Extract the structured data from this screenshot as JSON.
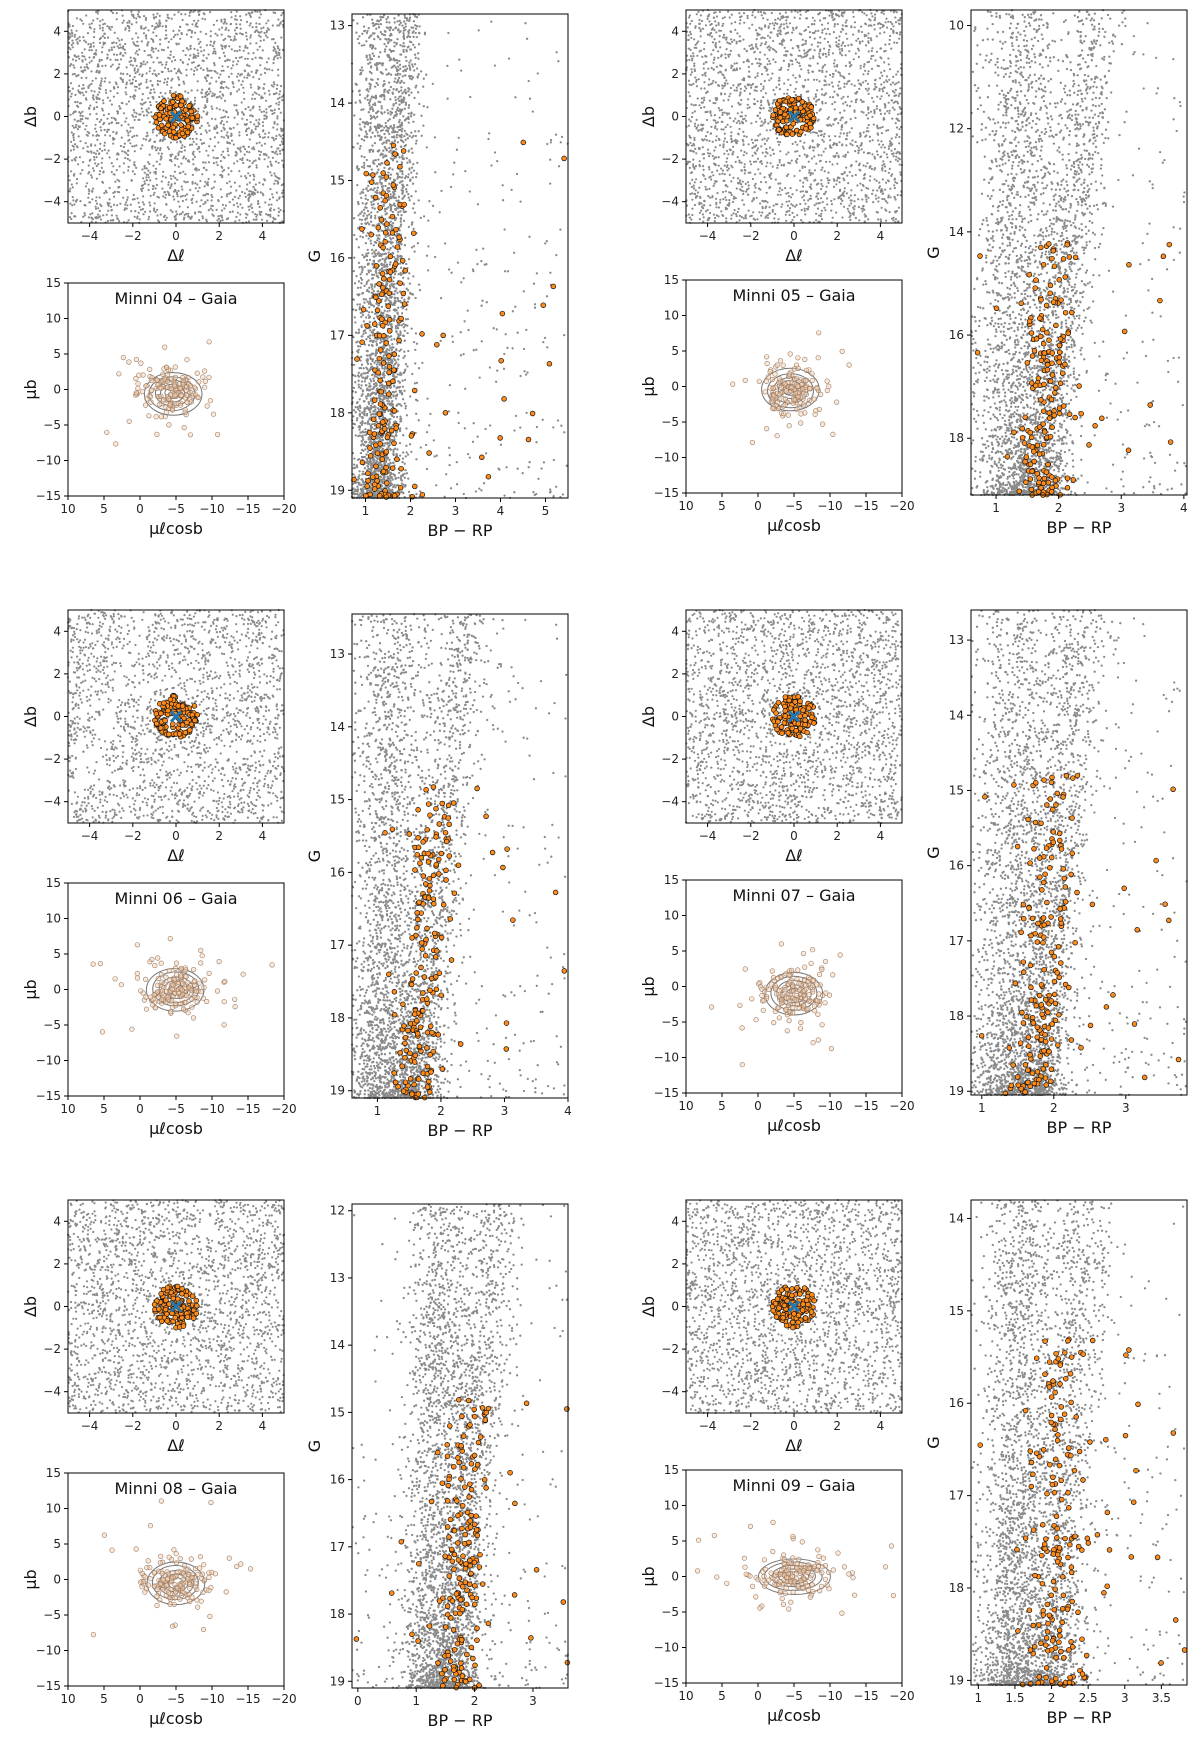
{
  "panels": [
    {
      "title": "Minni 04 – Gaia",
      "sky": {
        "xlabel": "Δℓ",
        "ylabel": "Δb",
        "xlim": [
          -5,
          5
        ],
        "ylim": [
          -5,
          5
        ],
        "xticks": [
          -4,
          -2,
          0,
          2,
          4
        ],
        "yticks": [
          -4,
          -2,
          0,
          2,
          4
        ],
        "cluster_radius": 1.0,
        "field_pattern": "uniform"
      },
      "pm": {
        "xlabel": "μℓcosb",
        "ylabel": "μb",
        "xlim": [
          10,
          -20
        ],
        "ylim": [
          -15,
          15
        ],
        "xticks": [
          10,
          5,
          0,
          -5,
          -10,
          -15,
          -20
        ],
        "yticks": [
          -15,
          -10,
          -5,
          0,
          5,
          10,
          15
        ],
        "center": [
          -4.5,
          -0.5
        ],
        "spread": [
          4,
          3
        ]
      },
      "cmd": {
        "xlabel": "BP − RP",
        "ylabel": "G",
        "xlim": [
          0.7,
          5.5
        ],
        "ylim": [
          19.1,
          12.85
        ],
        "xticks": [
          1,
          2,
          3,
          4,
          5
        ],
        "yticks": [
          13,
          14,
          15,
          16,
          17,
          18,
          19
        ],
        "rgb_color": 1.3,
        "rgb_slope": 0.1,
        "turnoff": 14.5,
        "field_color": 1.2,
        "field_width": 0.35
      }
    },
    {
      "title": "Minni 05 – Gaia",
      "sky": {
        "xlabel": "Δℓ",
        "ylabel": "Δb",
        "xlim": [
          -5,
          5
        ],
        "ylim": [
          -5,
          5
        ],
        "xticks": [
          -4,
          -2,
          0,
          2,
          4
        ],
        "yticks": [
          -4,
          -2,
          0,
          2,
          4
        ],
        "cluster_radius": 1.0,
        "field_pattern": "uniform"
      },
      "pm": {
        "xlabel": "μℓcosb",
        "ylabel": "μb",
        "xlim": [
          10,
          -20
        ],
        "ylim": [
          -15,
          15
        ],
        "xticks": [
          10,
          5,
          0,
          -5,
          -10,
          -15,
          -20
        ],
        "yticks": [
          -15,
          -10,
          -5,
          0,
          5,
          10,
          15
        ],
        "center": [
          -4.5,
          -0.5
        ],
        "spread": [
          4,
          3
        ]
      },
      "cmd": {
        "xlabel": "BP − RP",
        "ylabel": "G",
        "xlim": [
          0.6,
          4.05
        ],
        "ylim": [
          19.1,
          9.7
        ],
        "xticks": [
          1,
          2,
          3,
          4
        ],
        "yticks": [
          10,
          12,
          14,
          16,
          18
        ],
        "rgb_color": 1.7,
        "rgb_slope": 0.1,
        "turnoff": 14.2,
        "field_color": 1.3,
        "field_width": 0.35
      }
    },
    {
      "title": "Minni 06 – Gaia",
      "sky": {
        "xlabel": "Δℓ",
        "ylabel": "Δb",
        "xlim": [
          -5,
          5
        ],
        "ylim": [
          -5,
          5
        ],
        "xticks": [
          -4,
          -2,
          0,
          2,
          4
        ],
        "yticks": [
          -4,
          -2,
          0,
          2,
          4
        ],
        "cluster_radius": 1.0,
        "field_pattern": "striped"
      },
      "pm": {
        "xlabel": "μℓcosb",
        "ylabel": "μb",
        "xlim": [
          10,
          -20
        ],
        "ylim": [
          -15,
          15
        ],
        "xticks": [
          10,
          5,
          0,
          -5,
          -10,
          -15,
          -20
        ],
        "yticks": [
          -15,
          -10,
          -5,
          0,
          5,
          10,
          15
        ],
        "center": [
          -5,
          0
        ],
        "spread": [
          4,
          3
        ]
      },
      "cmd": {
        "xlabel": "BP − RP",
        "ylabel": "G",
        "xlim": [
          0.6,
          4.0
        ],
        "ylim": [
          19.1,
          12.45
        ],
        "xticks": [
          1,
          2,
          3,
          4
        ],
        "yticks": [
          13,
          14,
          15,
          16,
          17,
          18,
          19
        ],
        "rgb_color": 1.6,
        "rgb_slope": 0.12,
        "turnoff": 14.8,
        "field_color": 1.1,
        "field_width": 0.3
      }
    },
    {
      "title": "Minni 07 – Gaia",
      "sky": {
        "xlabel": "Δℓ",
        "ylabel": "Δb",
        "xlim": [
          -5,
          5
        ],
        "ylim": [
          -5,
          5
        ],
        "xticks": [
          -4,
          -2,
          0,
          2,
          4
        ],
        "yticks": [
          -4,
          -2,
          0,
          2,
          4
        ],
        "cluster_radius": 1.0,
        "field_pattern": "uniform"
      },
      "pm": {
        "xlabel": "μℓcosb",
        "ylabel": "μb",
        "xlim": [
          10,
          -20
        ],
        "ylim": [
          -15,
          15
        ],
        "xticks": [
          10,
          5,
          0,
          -5,
          -10,
          -15,
          -20
        ],
        "yticks": [
          -15,
          -10,
          -5,
          0,
          5,
          10,
          15
        ],
        "center": [
          -5,
          -1
        ],
        "spread": [
          4,
          3
        ]
      },
      "cmd": {
        "xlabel": "BP − RP",
        "ylabel": "G",
        "xlim": [
          0.85,
          3.85
        ],
        "ylim": [
          19.05,
          12.6
        ],
        "xticks": [
          1,
          2,
          3
        ],
        "yticks": [
          13,
          14,
          15,
          16,
          17,
          18,
          19
        ],
        "rgb_color": 1.75,
        "rgb_slope": 0.1,
        "turnoff": 14.8,
        "field_color": 1.4,
        "field_width": 0.3
      }
    },
    {
      "title": "Minni 08 – Gaia",
      "sky": {
        "xlabel": "Δℓ",
        "ylabel": "Δb",
        "xlim": [
          -5,
          5
        ],
        "ylim": [
          -5,
          5
        ],
        "xticks": [
          -4,
          -2,
          0,
          2,
          4
        ],
        "yticks": [
          -4,
          -2,
          0,
          2,
          4
        ],
        "cluster_radius": 1.0,
        "field_pattern": "uniform"
      },
      "pm": {
        "xlabel": "μℓcosb",
        "ylabel": "μb",
        "xlim": [
          10,
          -20
        ],
        "ylim": [
          -15,
          15
        ],
        "xticks": [
          10,
          5,
          0,
          -5,
          -10,
          -15,
          -20
        ],
        "yticks": [
          -15,
          -10,
          -5,
          0,
          5,
          10,
          15
        ],
        "center": [
          -5,
          -0.5
        ],
        "spread": [
          4,
          3
        ]
      },
      "cmd": {
        "xlabel": "BP − RP",
        "ylabel": "G",
        "xlim": [
          -0.1,
          3.6
        ],
        "ylim": [
          19.1,
          11.9
        ],
        "xticks": [
          0,
          1,
          2,
          3
        ],
        "yticks": [
          12,
          13,
          14,
          15,
          16,
          17,
          18,
          19
        ],
        "rgb_color": 1.65,
        "rgb_slope": 0.1,
        "turnoff": 14.8,
        "field_color": 1.3,
        "field_width": 0.28
      }
    },
    {
      "title": "Minni 09 – Gaia",
      "sky": {
        "xlabel": "Δℓ",
        "ylabel": "Δb",
        "xlim": [
          -5,
          5
        ],
        "ylim": [
          -5,
          5
        ],
        "xticks": [
          -4,
          -2,
          0,
          2,
          4
        ],
        "yticks": [
          -4,
          -2,
          0,
          2,
          4
        ],
        "cluster_radius": 1.0,
        "field_pattern": "uniform"
      },
      "pm": {
        "xlabel": "μℓcosb",
        "ylabel": "μb",
        "xlim": [
          10,
          -20
        ],
        "ylim": [
          -15,
          15
        ],
        "xticks": [
          10,
          5,
          0,
          -5,
          -10,
          -15,
          -20
        ],
        "yticks": [
          -15,
          -10,
          -5,
          0,
          5,
          10,
          15
        ],
        "center": [
          -5,
          0
        ],
        "spread": [
          5,
          2.5
        ]
      },
      "cmd": {
        "xlabel": "BP − RP",
        "ylabel": "G",
        "xlim": [
          0.9,
          3.85
        ],
        "ylim": [
          19.05,
          13.8
        ],
        "xticks": [
          1.0,
          1.5,
          2.0,
          2.5,
          3.0,
          3.5
        ],
        "yticks": [
          14,
          15,
          16,
          17,
          18,
          19
        ],
        "rgb_color": 2.0,
        "rgb_slope": 0.08,
        "turnoff": 15.3,
        "field_color": 1.5,
        "field_width": 0.25
      }
    }
  ],
  "chart_data": {
    "type": "scatter",
    "colors": {
      "field": "#8a8a8a",
      "member": "#ff8c1a",
      "member_edge": "#111111",
      "center_marker": "#1f77b4",
      "contour": "#555555"
    },
    "panels": [
      "Minni 04 – Gaia",
      "Minni 05 – Gaia",
      "Minni 06 – Gaia",
      "Minni 07 – Gaia",
      "Minni 08 – Gaia",
      "Minni 09 – Gaia"
    ]
  }
}
